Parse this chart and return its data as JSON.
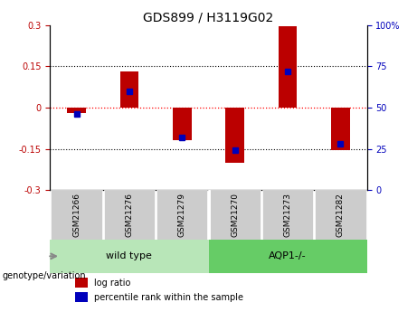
{
  "title": "GDS899 / H3119G02",
  "samples": [
    "GSM21266",
    "GSM21276",
    "GSM21279",
    "GSM21270",
    "GSM21273",
    "GSM21282"
  ],
  "log_ratios": [
    -0.02,
    0.13,
    -0.12,
    -0.2,
    0.295,
    -0.155
  ],
  "percentile_ranks": [
    46,
    60,
    32,
    24,
    72,
    28
  ],
  "group_labels": [
    "wild type",
    "AQP1-/-"
  ],
  "group_colors": [
    "#aaddaa",
    "#66cc66"
  ],
  "ylim_left": [
    -0.3,
    0.3
  ],
  "ylim_right": [
    0,
    100
  ],
  "yticks_left": [
    -0.3,
    -0.15,
    0,
    0.15,
    0.3
  ],
  "yticks_right": [
    0,
    25,
    50,
    75,
    100
  ],
  "bar_color_red": "#BB0000",
  "bar_color_blue": "#0000BB",
  "bar_width": 0.35,
  "blue_marker_size": 5,
  "group_box_color": "#cccccc",
  "wt_color": "#b8e6b8",
  "aqp_color": "#66cc66",
  "genotype_label": "genotype/variation",
  "legend_log_ratio": "log ratio",
  "legend_percentile": "percentile rank within the sample"
}
